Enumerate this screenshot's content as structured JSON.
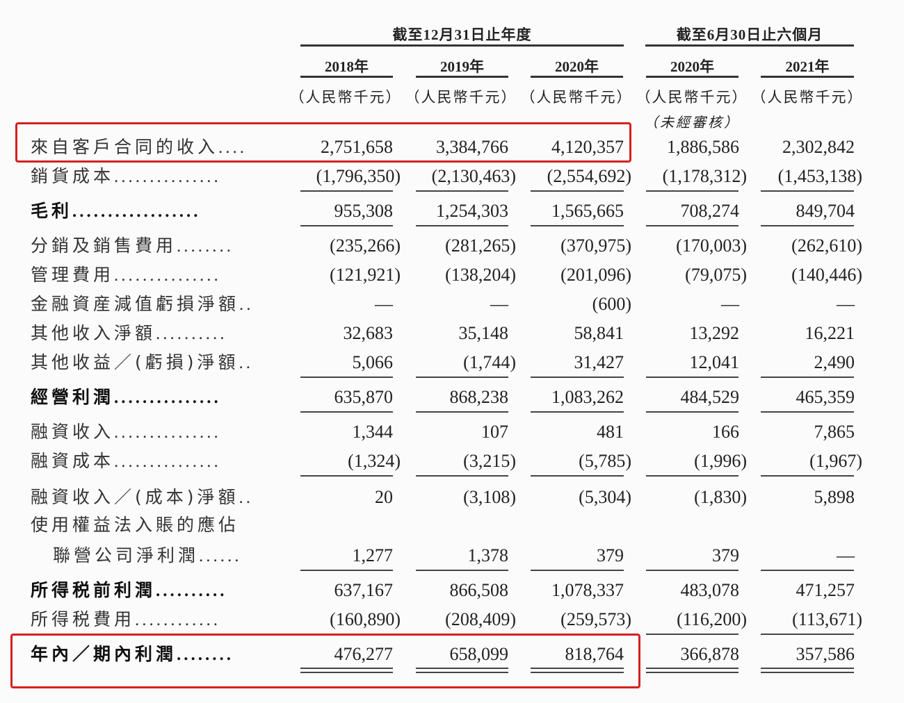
{
  "header": {
    "group_annual": "截至12月31日止年度",
    "group_interim": "截至6月30日止六個月",
    "years": [
      "2018年",
      "2019年",
      "2020年",
      "2020年",
      "2021年"
    ],
    "units": [
      "（人民幣千元）",
      "（人民幣千元）",
      "（人民幣千元）",
      "（人民幣千元）",
      "（人民幣千元）"
    ],
    "unaudited_note": "（未經審核）"
  },
  "rows": [
    {
      "label": "來自客戶合同的收入",
      "dots": "....",
      "bold": false,
      "values": [
        "2,751,658",
        "3,384,766",
        "4,120,357",
        "1,886,586",
        "2,302,842"
      ]
    },
    {
      "label": "銷貨成本",
      "dots": "...............",
      "bold": false,
      "values": [
        "(1,796,350)",
        "(2,130,463)",
        "(2,554,692)",
        "(1,178,312)",
        "(1,453,138)"
      ]
    },
    {
      "label": "毛利",
      "dots": "..................",
      "bold": true,
      "values": [
        "955,308",
        "1,254,303",
        "1,565,665",
        "708,274",
        "849,704"
      ]
    },
    {
      "label": "分銷及銷售費用",
      "dots": "........",
      "bold": false,
      "values": [
        "(235,266)",
        "(281,265)",
        "(370,975)",
        "(170,003)",
        "(262,610)"
      ]
    },
    {
      "label": "管理費用",
      "dots": "...............",
      "bold": false,
      "values": [
        "(121,921)",
        "(138,204)",
        "(201,096)",
        "(79,075)",
        "(140,446)"
      ]
    },
    {
      "label": "金融資産減值虧損淨額",
      "dots": "..",
      "bold": false,
      "values": [
        "—",
        "—",
        "(600)",
        "—",
        "—"
      ]
    },
    {
      "label": "其他收入淨額",
      "dots": "..........",
      "bold": false,
      "values": [
        "32,683",
        "35,148",
        "58,841",
        "13,292",
        "16,221"
      ]
    },
    {
      "label": "其他收益／(虧損)淨額",
      "dots": "..",
      "bold": false,
      "values": [
        "5,066",
        "(1,744)",
        "31,427",
        "12,041",
        "2,490"
      ]
    },
    {
      "label": "經營利潤",
      "dots": "...............",
      "bold": true,
      "values": [
        "635,870",
        "868,238",
        "1,083,262",
        "484,529",
        "465,359"
      ]
    },
    {
      "label": "融資收入",
      "dots": "...............",
      "bold": false,
      "values": [
        "1,344",
        "107",
        "481",
        "166",
        "7,865"
      ]
    },
    {
      "label": "融資成本",
      "dots": "...............",
      "bold": false,
      "values": [
        "(1,324)",
        "(3,215)",
        "(5,785)",
        "(1,996)",
        "(1,967)"
      ]
    },
    {
      "label": "融資收入／(成本)淨額",
      "dots": "..",
      "bold": false,
      "values": [
        "20",
        "(3,108)",
        "(5,304)",
        "(1,830)",
        "5,898"
      ]
    },
    {
      "label": "使用權益法入賬的應佔",
      "dots": "",
      "bold": false,
      "values": [
        "",
        "",
        "",
        "",
        ""
      ]
    },
    {
      "label": "聯營公司淨利潤",
      "dots": "......",
      "bold": false,
      "indent": true,
      "values": [
        "1,277",
        "1,378",
        "379",
        "379",
        "—"
      ]
    },
    {
      "label": "所得税前利潤",
      "dots": "..........",
      "bold": true,
      "values": [
        "637,167",
        "866,508",
        "1,078,337",
        "483,078",
        "471,257"
      ]
    },
    {
      "label": "所得税費用",
      "dots": "............",
      "bold": false,
      "values": [
        "(160,890)",
        "(208,409)",
        "(259,573)",
        "(116,200)",
        "(113,671)"
      ]
    },
    {
      "label": "年內／期內利潤",
      "dots": "........",
      "bold": true,
      "values": [
        "476,277",
        "658,099",
        "818,764",
        "366,878",
        "357,586"
      ]
    }
  ],
  "highlight_color": "#d42020"
}
